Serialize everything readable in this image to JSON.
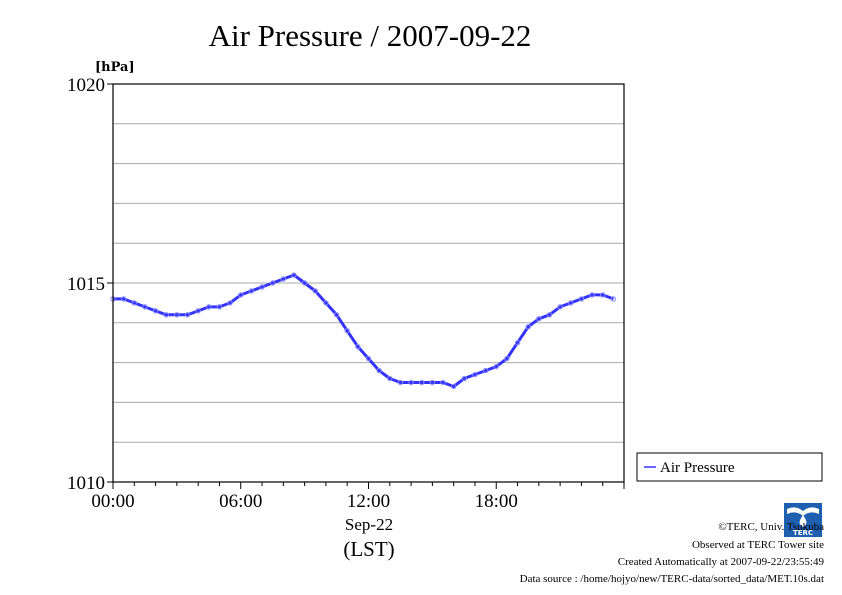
{
  "chart_data": {
    "type": "line",
    "title": "Air Pressure / 2007-09-22",
    "ylabel": "[hPa]",
    "xlabel": "Sep-22",
    "xlabel2": "(LST)",
    "xlim": [
      0,
      24
    ],
    "ylim": [
      1010,
      1020
    ],
    "x_ticks": [
      {
        "value": 0,
        "label": "00:00"
      },
      {
        "value": 6,
        "label": "06:00"
      },
      {
        "value": 12,
        "label": "12:00"
      },
      {
        "value": 18,
        "label": "18:00"
      }
    ],
    "y_ticks": [
      {
        "value": 1010,
        "label": "1010"
      },
      {
        "value": 1015,
        "label": "1015"
      },
      {
        "value": 1020,
        "label": "1020"
      }
    ],
    "y_gridlines": [
      1011,
      1012,
      1013,
      1014,
      1015,
      1016,
      1017,
      1018,
      1019
    ],
    "grid": true,
    "legend_position": "right",
    "series": [
      {
        "name": "Air Pressure",
        "color": "#3333ff",
        "x": [
          0,
          0.5,
          1,
          1.5,
          2,
          2.5,
          3,
          3.5,
          4,
          4.5,
          5,
          5.5,
          6,
          6.5,
          7,
          7.5,
          8,
          8.5,
          9,
          9.5,
          10,
          10.5,
          11,
          11.5,
          12,
          12.5,
          13,
          13.5,
          14,
          14.5,
          15,
          15.5,
          16,
          16.5,
          17,
          17.5,
          18,
          18.5,
          19,
          19.5,
          20,
          20.5,
          21,
          21.5,
          22,
          22.5,
          23,
          23.5
        ],
        "y": [
          1014.6,
          1014.6,
          1014.5,
          1014.4,
          1014.3,
          1014.2,
          1014.2,
          1014.2,
          1014.3,
          1014.4,
          1014.4,
          1014.5,
          1014.7,
          1014.8,
          1014.9,
          1015.0,
          1015.1,
          1015.2,
          1015.0,
          1014.8,
          1014.5,
          1014.2,
          1013.8,
          1013.4,
          1013.1,
          1012.8,
          1012.6,
          1012.5,
          1012.5,
          1012.5,
          1012.5,
          1012.5,
          1012.4,
          1012.6,
          1012.7,
          1012.8,
          1012.9,
          1013.1,
          1013.5,
          1013.9,
          1014.1,
          1014.2,
          1014.4,
          1014.5,
          1014.6,
          1014.7,
          1014.7,
          1014.6
        ]
      }
    ]
  },
  "footer": {
    "copyright": "©TERC, Univ. Tsukuba",
    "observed": "Observed at TERC Tower site",
    "created": "Created Automatically at 2007-09-22/23:55:49",
    "source": "Data source : /home/hojyo/new/TERC-data/sorted_data/MET.10s.dat",
    "logo_text": "TERC"
  }
}
